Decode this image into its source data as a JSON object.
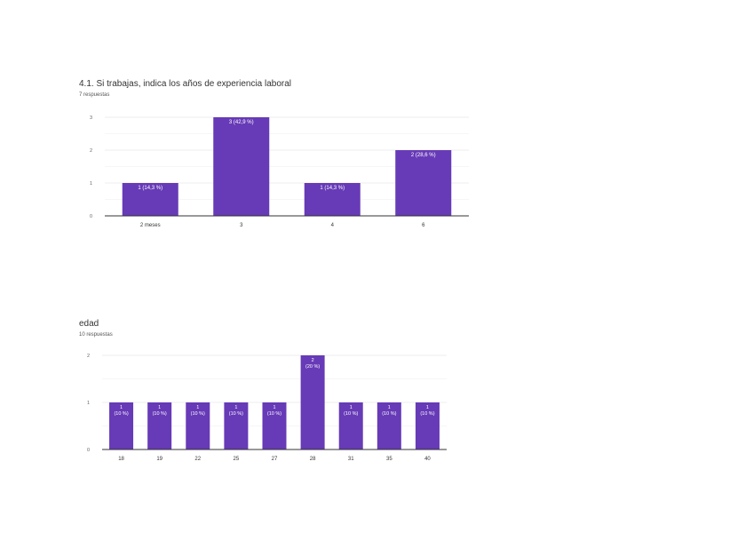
{
  "chart_data": [
    {
      "type": "bar",
      "title": "4.1. Si trabajas, indica los años de experiencia laboral",
      "subtitle": "7 respuestas",
      "categories": [
        "2 meses",
        "3",
        "4",
        "6"
      ],
      "values": [
        1,
        3,
        1,
        2
      ],
      "data_labels": [
        "1 (14,3 %)",
        "3 (42,9 %)",
        "1 (14,3 %)",
        "2 (28,6 %)"
      ],
      "yticks": [
        "0",
        "1",
        "2",
        "3"
      ],
      "ylim": [
        0,
        3
      ],
      "grid": true,
      "color": "#673ab7"
    },
    {
      "type": "bar",
      "title": "edad",
      "subtitle": "10 respuestas",
      "categories": [
        "18",
        "19",
        "22",
        "25",
        "27",
        "28",
        "31",
        "35",
        "40"
      ],
      "values": [
        1,
        1,
        1,
        1,
        1,
        2,
        1,
        1,
        1
      ],
      "data_labels": [
        [
          "1",
          "(10 %)"
        ],
        [
          "1",
          "(10 %)"
        ],
        [
          "1",
          "(10 %)"
        ],
        [
          "1",
          "(10 %)"
        ],
        [
          "1",
          "(10 %)"
        ],
        [
          "2",
          "(20 %)"
        ],
        [
          "1",
          "(10 %)"
        ],
        [
          "1",
          "(10 %)"
        ],
        [
          "1",
          "(10 %)"
        ]
      ],
      "yticks": [
        "0",
        "1",
        "2"
      ],
      "ylim": [
        0,
        2
      ],
      "grid": true,
      "color": "#673ab7"
    }
  ]
}
